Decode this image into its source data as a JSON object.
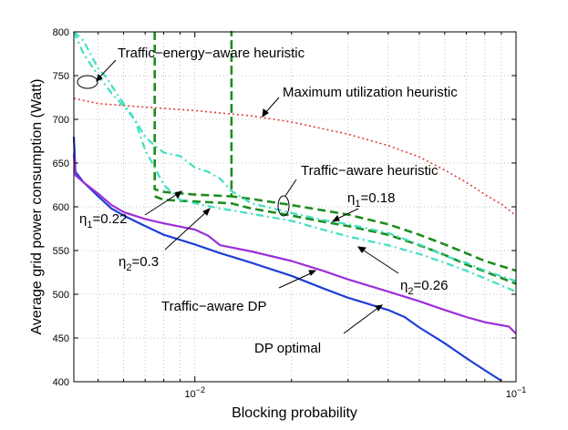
{
  "chart_data": {
    "type": "line",
    "title": "",
    "xlabel": "Blocking probability",
    "ylabel": "Average grid power consumption (Watt)",
    "xscale": "log",
    "xlim": [
      0.0042,
      0.1
    ],
    "ylim": [
      400,
      800
    ],
    "grid": true,
    "x_ticks": [
      {
        "value": 0.01,
        "base": "10",
        "exp": "−2"
      },
      {
        "value": 0.1,
        "base": "10",
        "exp": "−1"
      }
    ],
    "y_ticks": [
      "400",
      "450",
      "500",
      "550",
      "600",
      "650",
      "700",
      "750",
      "800"
    ],
    "colors": {
      "dp_optimal": "#1f3fd6",
      "traffic_aware_dp": "#9b30d9",
      "traffic_aware": "#1e8c1e",
      "traffic_energy": "#40e0c0",
      "max_util": "#e03c3c"
    },
    "series": [
      {
        "key": "dp_optimal",
        "style": "solid",
        "color": "#1f3fd6",
        "points": [
          [
            0.0042,
            680
          ],
          [
            0.00425,
            640
          ],
          [
            0.0045,
            628
          ],
          [
            0.005,
            612
          ],
          [
            0.0055,
            598
          ],
          [
            0.006,
            590
          ],
          [
            0.007,
            578
          ],
          [
            0.008,
            568
          ],
          [
            0.01,
            557
          ],
          [
            0.012,
            547
          ],
          [
            0.015,
            536
          ],
          [
            0.02,
            521
          ],
          [
            0.025,
            507
          ],
          [
            0.03,
            496
          ],
          [
            0.04,
            482
          ],
          [
            0.045,
            474
          ],
          [
            0.05,
            462
          ],
          [
            0.06,
            444
          ],
          [
            0.07,
            427
          ],
          [
            0.08,
            413
          ],
          [
            0.09,
            401
          ]
        ]
      },
      {
        "key": "traffic_aware_dp",
        "style": "solid",
        "color": "#9b30d9",
        "points": [
          [
            0.0042,
            660
          ],
          [
            0.00425,
            636
          ],
          [
            0.0045,
            628
          ],
          [
            0.005,
            615
          ],
          [
            0.0055,
            602
          ],
          [
            0.006,
            594
          ],
          [
            0.007,
            586
          ],
          [
            0.008,
            581
          ],
          [
            0.01,
            574
          ],
          [
            0.011,
            567
          ],
          [
            0.012,
            556
          ],
          [
            0.015,
            549
          ],
          [
            0.02,
            538
          ],
          [
            0.025,
            527
          ],
          [
            0.03,
            517
          ],
          [
            0.04,
            503
          ],
          [
            0.05,
            492
          ],
          [
            0.06,
            482
          ],
          [
            0.07,
            474
          ],
          [
            0.08,
            468
          ],
          [
            0.095,
            463
          ],
          [
            0.1,
            455
          ]
        ]
      },
      {
        "key": "traffic_aware_eta_018",
        "style": "dashed",
        "color": "#1e8c1e",
        "points": [
          [
            0.0075,
            800
          ],
          [
            0.0075,
            620
          ],
          [
            0.008,
            617
          ],
          [
            0.01,
            614
          ],
          [
            0.013,
            612
          ],
          [
            0.013,
            800
          ],
          [
            0.013,
            612
          ],
          [
            0.015,
            609
          ],
          [
            0.02,
            602
          ],
          [
            0.025,
            596
          ],
          [
            0.03,
            591
          ],
          [
            0.04,
            580
          ],
          [
            0.05,
            568
          ],
          [
            0.06,
            557
          ],
          [
            0.07,
            547
          ],
          [
            0.08,
            538
          ],
          [
            0.1,
            527
          ]
        ]
      },
      {
        "key": "traffic_aware_eta_026",
        "style": "dashed",
        "color": "#1e8c1e",
        "points": [
          [
            0.0075,
            612
          ],
          [
            0.008,
            608
          ],
          [
            0.01,
            606
          ],
          [
            0.013,
            604
          ],
          [
            0.015,
            598
          ],
          [
            0.02,
            590
          ],
          [
            0.025,
            583
          ],
          [
            0.03,
            578
          ],
          [
            0.04,
            568
          ],
          [
            0.05,
            556
          ],
          [
            0.06,
            545
          ],
          [
            0.07,
            534
          ],
          [
            0.08,
            526
          ],
          [
            0.1,
            512
          ]
        ]
      },
      {
        "key": "traffic_energy_eta_022",
        "style": "dashdot",
        "color": "#40e0c0",
        "points": [
          [
            0.0042,
            800
          ],
          [
            0.0045,
            790
          ],
          [
            0.005,
            758
          ],
          [
            0.0053,
            748
          ],
          [
            0.0057,
            730
          ],
          [
            0.0065,
            700
          ],
          [
            0.007,
            680
          ],
          [
            0.0075,
            670
          ],
          [
            0.008,
            662
          ],
          [
            0.009,
            658
          ],
          [
            0.01,
            645
          ],
          [
            0.011,
            640
          ],
          [
            0.012,
            632
          ],
          [
            0.013,
            618
          ],
          [
            0.015,
            604
          ],
          [
            0.02,
            593
          ],
          [
            0.025,
            585
          ],
          [
            0.03,
            580
          ],
          [
            0.04,
            570
          ],
          [
            0.05,
            557
          ],
          [
            0.06,
            544
          ],
          [
            0.07,
            536
          ],
          [
            0.08,
            527
          ],
          [
            0.1,
            515
          ]
        ]
      },
      {
        "key": "traffic_energy_eta_03",
        "style": "dashdot",
        "color": "#40e0c0",
        "points": [
          [
            0.0042,
            800
          ],
          [
            0.0045,
            775
          ],
          [
            0.005,
            750
          ],
          [
            0.0055,
            730
          ],
          [
            0.006,
            715
          ],
          [
            0.0065,
            700
          ],
          [
            0.007,
            665
          ],
          [
            0.0075,
            645
          ],
          [
            0.008,
            625
          ],
          [
            0.009,
            608
          ],
          [
            0.01,
            604
          ],
          [
            0.012,
            598
          ],
          [
            0.013,
            596
          ],
          [
            0.015,
            592
          ],
          [
            0.02,
            584
          ],
          [
            0.025,
            574
          ],
          [
            0.03,
            566
          ],
          [
            0.04,
            556
          ],
          [
            0.05,
            546
          ],
          [
            0.06,
            536
          ],
          [
            0.07,
            527
          ],
          [
            0.08,
            518
          ],
          [
            0.1,
            503
          ]
        ]
      },
      {
        "key": "max_util",
        "style": "dotted",
        "color": "#e03c3c",
        "points": [
          [
            0.0042,
            724
          ],
          [
            0.005,
            718
          ],
          [
            0.007,
            714
          ],
          [
            0.01,
            710
          ],
          [
            0.015,
            704
          ],
          [
            0.02,
            697
          ],
          [
            0.03,
            683
          ],
          [
            0.04,
            670
          ],
          [
            0.05,
            657
          ],
          [
            0.06,
            642
          ],
          [
            0.07,
            628
          ],
          [
            0.08,
            614
          ],
          [
            0.09,
            603
          ],
          [
            0.1,
            590
          ]
        ]
      }
    ],
    "annotations": [
      {
        "key": "tea",
        "text": "Traffic−energy−aware heuristic"
      },
      {
        "key": "mu",
        "text": "Maximum utilization heuristic"
      },
      {
        "key": "ta",
        "text": "Traffic−aware heuristic"
      },
      {
        "key": "eta1_018",
        "base": "η",
        "sub": "1",
        "value": "=0.18"
      },
      {
        "key": "eta1_022",
        "base": "η",
        "sub": "1",
        "value": "=0.22"
      },
      {
        "key": "eta2_03",
        "base": "η",
        "sub": "2",
        "value": "=0.3"
      },
      {
        "key": "eta2_026",
        "base": "η",
        "sub": "2",
        "value": "=0.26"
      },
      {
        "key": "tadp",
        "text": "Traffic−aware DP"
      },
      {
        "key": "dpopt",
        "text": "DP optimal"
      }
    ]
  }
}
